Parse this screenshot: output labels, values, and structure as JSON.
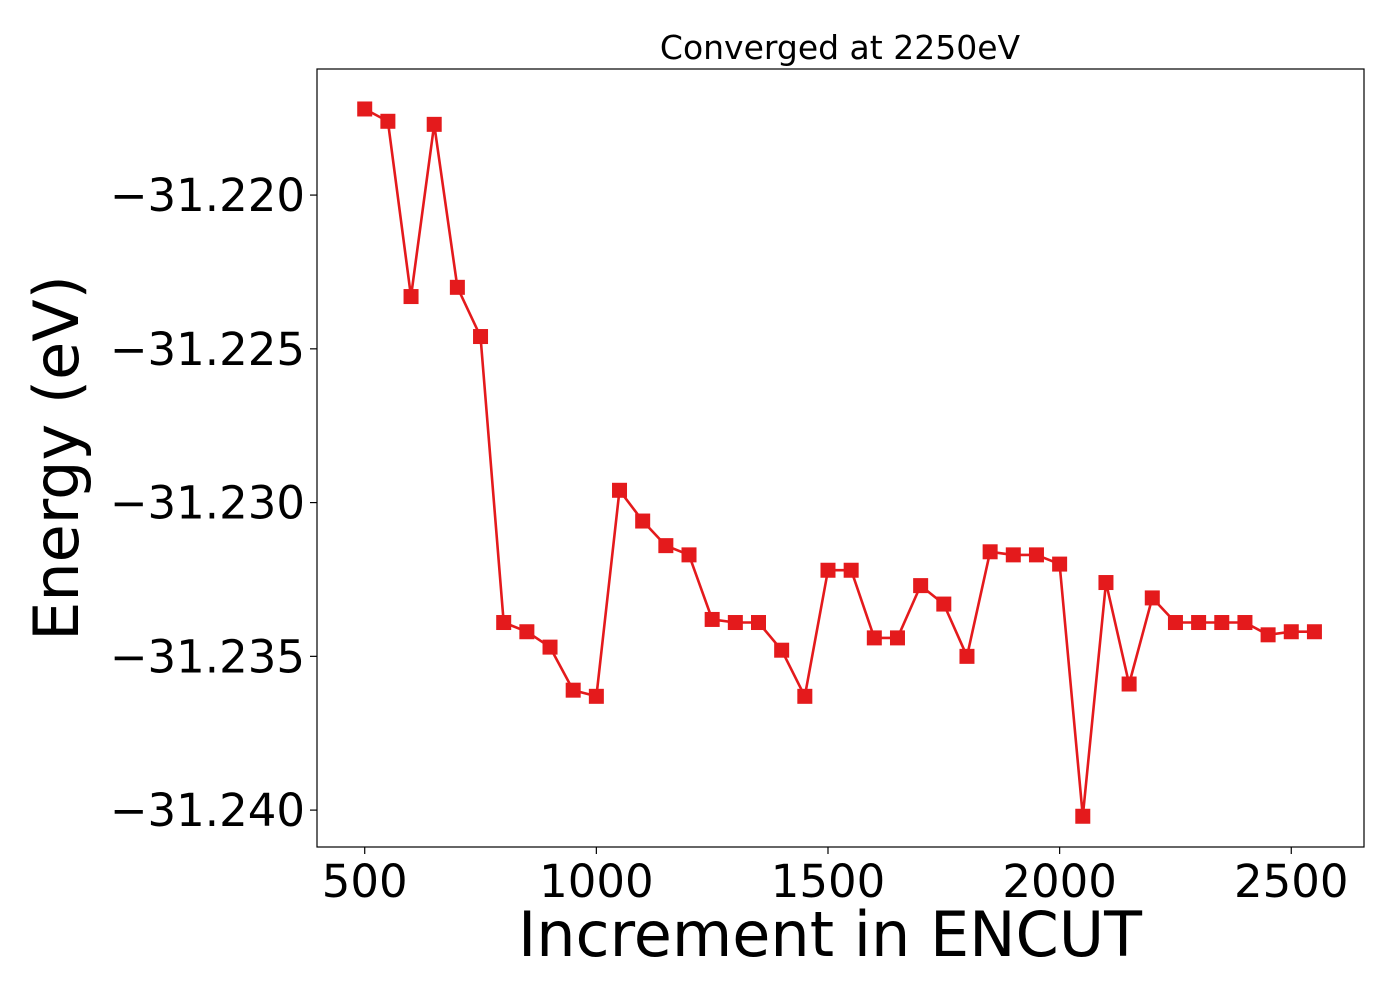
{
  "chart_data": {
    "type": "line",
    "title": "Converged at 2250eV",
    "xlabel": "Increment in ENCUT",
    "ylabel": "Energy (eV)",
    "xlim": [
      397,
      2657
    ],
    "ylim": [
      -31.2412,
      -31.2159
    ],
    "x_ticks": [
      500,
      1000,
      1500,
      2000,
      2500
    ],
    "x_tick_labels": [
      "500",
      "1000",
      "1500",
      "2000",
      "2500"
    ],
    "y_ticks": [
      -31.22,
      -31.225,
      -31.23,
      -31.235,
      -31.24
    ],
    "y_tick_labels": [
      "−31.220",
      "−31.225",
      "−31.230",
      "−31.235",
      "−31.240"
    ],
    "grid": false,
    "series": [
      {
        "color": "#e41a1c",
        "marker": "square",
        "x": [
          500,
          550,
          600,
          650,
          700,
          750,
          800,
          850,
          900,
          950,
          1000,
          1050,
          1100,
          1150,
          1200,
          1250,
          1300,
          1350,
          1400,
          1450,
          1500,
          1550,
          1600,
          1650,
          1700,
          1750,
          1800,
          1850,
          1900,
          1950,
          2000,
          2050,
          2100,
          2150,
          2200,
          2250,
          2300,
          2350,
          2400,
          2450,
          2500,
          2550
        ],
        "y": [
          -31.2172,
          -31.2176,
          -31.2233,
          -31.2177,
          -31.223,
          -31.2246,
          -31.2339,
          -31.2342,
          -31.2347,
          -31.2361,
          -31.2363,
          -31.2296,
          -31.2306,
          -31.2314,
          -31.2317,
          -31.2338,
          -31.2339,
          -31.2339,
          -31.2348,
          -31.2363,
          -31.2322,
          -31.2322,
          -31.2344,
          -31.2344,
          -31.2327,
          -31.2333,
          -31.235,
          -31.2316,
          -31.2317,
          -31.2317,
          -31.232,
          -31.2402,
          -31.2326,
          -31.2359,
          -31.2331,
          -31.2339,
          -31.2339,
          -31.2339,
          -31.2339,
          -31.2343,
          -31.2342,
          -31.2342
        ]
      }
    ]
  }
}
